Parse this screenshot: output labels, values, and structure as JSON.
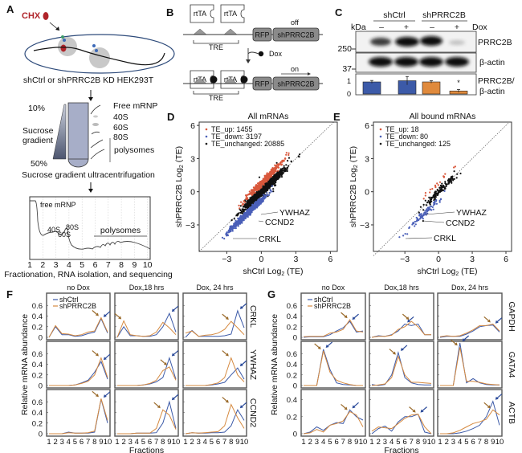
{
  "panel_labels": {
    "a": "A",
    "b": "B",
    "c": "C",
    "d": "D",
    "e": "E",
    "f": "F",
    "g": "G"
  },
  "panel_a": {
    "drug": "CHX",
    "cell_line": "shCtrl or shPRRC2B KD HEK293T",
    "gradient_top": "10%",
    "gradient_bottom": "50%",
    "gradient_label_1": "Sucrose",
    "gradient_label_2": "gradient",
    "fractions": [
      "Free mRNP",
      "40S",
      "60S",
      "80S",
      "polysomes"
    ],
    "step_2": "Sucrose gradient ultracentrifugation",
    "profile_labels": {
      "free": "free mRNP",
      "s40": "40S",
      "s60": "60S",
      "s80": "80S",
      "poly": "polysomes"
    },
    "fraction_numbers": [
      "1",
      "2",
      "3",
      "4",
      "5",
      "6",
      "7",
      "8",
      "9",
      "10"
    ],
    "step_3": "Fractionation, RNA isolation, and sequencing"
  },
  "panel_b": {
    "activator": "rtTA",
    "reporter": "RFP",
    "shrna": "shPRRC2B",
    "promoter": "TRE",
    "state_off": "off",
    "state_on": "on",
    "inducer": "Dox"
  },
  "panel_c": {
    "groups": [
      "shCtrl",
      "shPRRC2B"
    ],
    "unit": "kDa",
    "dox_signs": [
      "–",
      "+",
      "–",
      "+"
    ],
    "dox_label": "Dox",
    "markers": [
      "250",
      "37"
    ],
    "bands": [
      "PRRC2B",
      "β-actin"
    ],
    "quant_label_1": "PRRC2B/",
    "quant_label_2": "β-actin",
    "quant_ticks": [
      "1",
      "0"
    ],
    "quant_values": [
      1.0,
      1.1,
      1.0,
      0.25
    ],
    "quant_errors": [
      0.12,
      0.35,
      0.1,
      0.12
    ],
    "quant_colors": [
      "#3c5aa8",
      "#3c5aa8",
      "#e08a3c",
      "#e08a3c"
    ],
    "significance": "*"
  },
  "colors": {
    "ctrl": "#3c5aa8",
    "kd": "#d5893f",
    "up": "#d9583c",
    "down": "#4a5fb8",
    "unchanged": "#111111"
  },
  "chart_data": [
    {
      "type": "scatter",
      "title": "All mRNAs",
      "xlabel": "shCtrl Log2 (TE)",
      "ylabel": "shPRRC2B Log2 (TE)",
      "xlim": [
        -5.4,
        6.6
      ],
      "ylim": [
        -5.4,
        6.3
      ],
      "ticks": [
        "-3",
        "0",
        "3",
        "6"
      ],
      "legend": [
        "TE_up: 1455",
        "TE_down: 3197",
        "TE_unchanged: 20885"
      ],
      "counts": {
        "up": 1455,
        "down": 3197,
        "unchanged": 20885
      },
      "annotations": [
        "YWHAZ",
        "CCND2",
        "CRKL"
      ]
    },
    {
      "type": "scatter",
      "title": "All bound mRNAs",
      "xlabel": "shCtrl Log2 (TE)",
      "ylabel": "shPRRC2B Log2 (TE)",
      "xlim": [
        -5.8,
        6.5
      ],
      "ylim": [
        -5.4,
        6.3
      ],
      "ticks": [
        "-3",
        "0",
        "3",
        "6"
      ],
      "legend": [
        "TE_up: 18",
        "TE_down: 80",
        "TE_unchanged: 125"
      ],
      "counts": {
        "up": 18,
        "down": 80,
        "unchanged": 125
      },
      "annotations": [
        "YWHAZ",
        "CCND2",
        "CRKL"
      ]
    },
    {
      "type": "line",
      "panel": "F",
      "columns": [
        "no Dox",
        "Dox,18 hrs",
        "Dox, 24 hrs"
      ],
      "rows": [
        "CRKL",
        "YWHAZ",
        "CCND2"
      ],
      "legend": [
        "shCtrl",
        "shPRRC2B"
      ],
      "ylabel": "Relative mRNA abundance",
      "xlabel": "Fractions",
      "x": [
        "1",
        "2",
        "3",
        "4",
        "5",
        "6",
        "7",
        "8",
        "9",
        "10"
      ],
      "yticks": [
        [
          "0",
          "0.2",
          "0.4",
          "0.6"
        ],
        [
          "0",
          "0.2",
          "0.4",
          "0.6"
        ],
        [
          "0",
          "0.2",
          "0.4",
          "0.6"
        ]
      ],
      "ymax": [
        0.8,
        0.8,
        0.8
      ],
      "series": [
        [
          {
            "ctrl": [
              0,
              0.2,
              0.05,
              0.05,
              0.02,
              0.03,
              0.07,
              0.1,
              0.35,
              0.08
            ],
            "kd": [
              0,
              0.22,
              0.07,
              0.06,
              0.03,
              0.05,
              0.1,
              0.12,
              0.37,
              0.1
            ]
          },
          {
            "ctrl": [
              0,
              0.2,
              0.03,
              0.03,
              0.02,
              0.02,
              0.05,
              0.2,
              0.45,
              0.1
            ],
            "kd": [
              0,
              0.31,
              0.05,
              0.03,
              0.02,
              0.03,
              0.1,
              0.28,
              0.18,
              0.05
            ]
          },
          {
            "ctrl": [
              0,
              0.13,
              0.02,
              0.02,
              0.02,
              0.02,
              0.03,
              0.06,
              0.5,
              0.18
            ],
            "kd": [
              0.08,
              0.12,
              0.02,
              0.04,
              0.05,
              0.08,
              0.15,
              0.3,
              0.18,
              0.05
            ]
          }
        ],
        [
          {
            "ctrl": [
              0,
              0,
              0,
              0,
              0.01,
              0.05,
              0.1,
              0.25,
              0.45,
              0.12
            ],
            "kd": [
              0,
              0,
              0,
              0,
              0.01,
              0.04,
              0.08,
              0.2,
              0.52,
              0.15
            ]
          },
          {
            "ctrl": [
              0,
              0,
              0,
              0,
              0.01,
              0.03,
              0.07,
              0.15,
              0.52,
              0.12
            ],
            "kd": [
              0,
              0,
              0,
              0,
              0.01,
              0.04,
              0.1,
              0.28,
              0.35,
              0.1
            ]
          },
          {
            "ctrl": [
              0,
              0,
              0,
              0,
              0.01,
              0.03,
              0.06,
              0.2,
              0.33,
              0.12
            ],
            "kd": [
              0,
              0,
              0,
              0,
              0.02,
              0.05,
              0.15,
              0.52,
              0.2,
              0.07
            ]
          }
        ],
        [
          {
            "ctrl": [
              0,
              0,
              0,
              0.03,
              0.01,
              0.01,
              0.01,
              0.03,
              0.65,
              0.2
            ],
            "kd": [
              0,
              0,
              0,
              0.02,
              0.01,
              0.01,
              0.02,
              0.05,
              0.66,
              0.25
            ]
          },
          {
            "ctrl": [
              0,
              0,
              0,
              0.01,
              0.01,
              0.01,
              0.02,
              0.2,
              0.6,
              0.1
            ],
            "kd": [
              0,
              0,
              0,
              0.01,
              0.01,
              0.01,
              0.1,
              0.45,
              0.35,
              0.08
            ]
          },
          {
            "ctrl": [
              0,
              0.02,
              0.01,
              0.01,
              0.02,
              0.02,
              0.03,
              0.15,
              0.45,
              0.25
            ],
            "kd": [
              0,
              0.02,
              0.01,
              0.02,
              0.03,
              0.04,
              0.15,
              0.55,
              0.3,
              0.1
            ]
          }
        ]
      ]
    },
    {
      "type": "line",
      "panel": "G",
      "columns": [
        "no Dox",
        "Dox,18 hrs",
        "Dox, 24 hrs"
      ],
      "rows": [
        "GAPDH",
        "GATA4",
        "ACTB"
      ],
      "legend": [
        "shCtrl",
        "shPRRC2B"
      ],
      "ylabel": "Relative mRNA abundance",
      "xlabel": "Fractions",
      "x": [
        "1",
        "2",
        "3",
        "4",
        "5",
        "6",
        "7",
        "8",
        "9",
        "10"
      ],
      "yticks": [
        [
          "0",
          "0.2",
          "0.4",
          "0.6"
        ],
        [
          "0",
          "0.2",
          "0.4",
          "0.6"
        ],
        [
          "0",
          "0.2",
          "0.4"
        ]
      ],
      "ymax": [
        0.8,
        0.8,
        0.5
      ],
      "series": [
        [
          {
            "ctrl": [
              0,
              0.01,
              0.01,
              0.01,
              0.05,
              0.12,
              0.18,
              0.3,
              0.1,
              0.12
            ],
            "kd": [
              0.01,
              0.02,
              0.02,
              0.02,
              0.08,
              0.1,
              0.15,
              0.33,
              0.12,
              0.1
            ]
          },
          {
            "ctrl": [
              0,
              0.03,
              0.02,
              0.05,
              0.12,
              0.25,
              0.22,
              0.25,
              0.05,
              0.05
            ],
            "kd": [
              0,
              0.02,
              0.02,
              0.04,
              0.15,
              0.2,
              0.3,
              0.2,
              0.05,
              0.05
            ]
          },
          {
            "ctrl": [
              0,
              0.02,
              0.02,
              0.02,
              0.06,
              0.12,
              0.2,
              0.22,
              0.23,
              0.1
            ],
            "kd": [
              0.01,
              0.03,
              0.02,
              0.03,
              0.08,
              0.14,
              0.22,
              0.22,
              0.25,
              0.12
            ]
          }
        ],
        [
          {
            "ctrl": [
              0,
              0,
              0,
              0.68,
              0.3,
              0.05,
              0.02,
              0.01,
              0,
              0
            ],
            "kd": [
              0,
              0,
              0,
              0.65,
              0.25,
              0.1,
              0.05,
              0.02,
              0,
              0
            ]
          },
          {
            "ctrl": [
              0.02,
              0,
              0.02,
              0.2,
              0.62,
              0.15,
              0.05,
              0.02,
              0.01,
              0.01
            ],
            "kd": [
              0,
              0.01,
              0.03,
              0.15,
              0.55,
              0.2,
              0.06,
              0.06,
              0.05,
              0.04
            ]
          },
          {
            "ctrl": [
              0,
              0,
              0,
              0.8,
              0.05,
              0.13,
              0.05,
              0.02,
              0.01,
              0.01
            ],
            "kd": [
              0,
              0,
              0,
              0.72,
              0.08,
              0.08,
              0.06,
              0.03,
              0.02,
              0.01
            ]
          }
        ],
        [
          {
            "ctrl": [
              0,
              0.02,
              0.08,
              0.04,
              0.1,
              0.13,
              0.12,
              0.28,
              0.2,
              0.16
            ],
            "kd": [
              0,
              0.01,
              0.05,
              0.02,
              0.1,
              0.12,
              0.15,
              0.26,
              0.22,
              0.08
            ]
          },
          {
            "ctrl": [
              0,
              0.06,
              0.09,
              0.03,
              0.14,
              0.2,
              0.2,
              0.23,
              0.02,
              0
            ],
            "kd": [
              0.03,
              0.08,
              0.07,
              0.06,
              0.12,
              0.18,
              0.22,
              0.23,
              0.08,
              0
            ]
          },
          {
            "ctrl": [
              0,
              0,
              0,
              0.01,
              0.03,
              0.06,
              0.1,
              0.2,
              0.38,
              0.1
            ],
            "kd": [
              0,
              0,
              0.01,
              0.04,
              0.08,
              0.12,
              0.14,
              0.17,
              0.28,
              0.22
            ]
          }
        ]
      ]
    }
  ]
}
